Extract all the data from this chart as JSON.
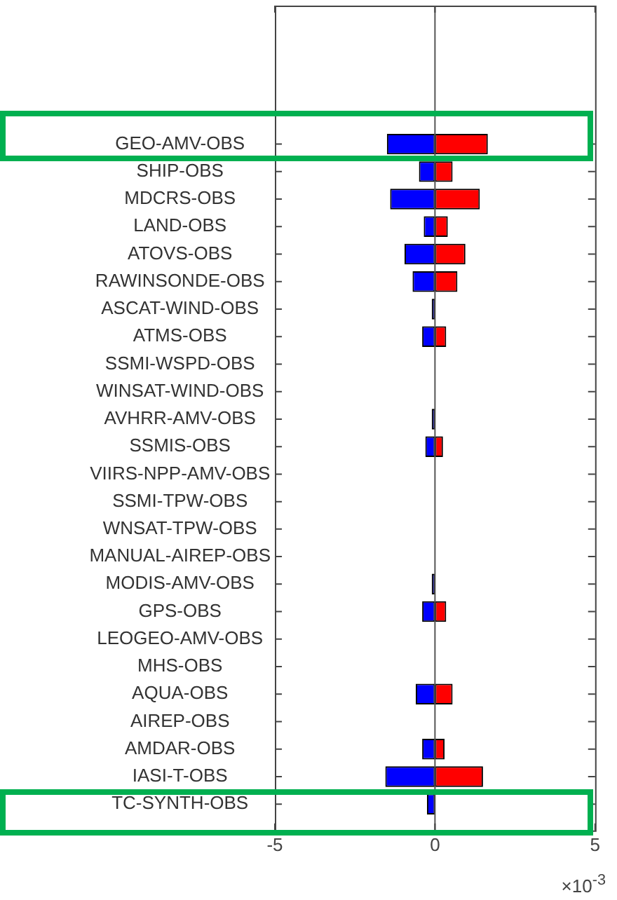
{
  "chart_data": {
    "type": "bar",
    "orientation": "horizontal",
    "stacked": true,
    "categories": [
      "GEO-AMV-OBS",
      "SHIP-OBS",
      "MDCRS-OBS",
      "LAND-OBS",
      "ATOVS-OBS",
      "RAWINSONDE-OBS",
      "ASCAT-WIND-OBS",
      "ATMS-OBS",
      "SSMI-WSPD-OBS",
      "WINSAT-WIND-OBS",
      "AVHRR-AMV-OBS",
      "SSMIS-OBS",
      "VIIRS-NPP-AMV-OBS",
      "SSMI-TPW-OBS",
      "WNSAT-TPW-OBS",
      "MANUAL-AIREP-OBS",
      "MODIS-AMV-OBS",
      "GPS-OBS",
      "LEOGEO-AMV-OBS",
      "MHS-OBS",
      "AQUA-OBS",
      "AIREP-OBS",
      "AMDAR-OBS",
      "IASI-T-OBS",
      "TC-SYNTH-OBS"
    ],
    "series": [
      {
        "color": "#0000ff",
        "values": [
          -1.5,
          -0.5,
          -1.4,
          -0.35,
          -0.95,
          -0.7,
          -0.1,
          -0.4,
          0,
          0,
          -0.1,
          -0.3,
          0,
          0,
          0,
          0,
          -0.1,
          -0.4,
          0,
          0,
          -0.6,
          0,
          -0.4,
          -1.55,
          -0.25
        ]
      },
      {
        "color": "#ff0000",
        "values": [
          1.65,
          0.55,
          1.4,
          0.4,
          0.95,
          0.7,
          0,
          0.35,
          0,
          0,
          0,
          0.25,
          0,
          0,
          0,
          0,
          0,
          0.35,
          0,
          0,
          0.55,
          0,
          0.3,
          1.5,
          0
        ]
      }
    ],
    "ref_lines": [
      {
        "axis": "x",
        "value": 0,
        "color": "#555555"
      }
    ],
    "xlim": [
      -5,
      5
    ],
    "xticks": [
      -5,
      0,
      5
    ],
    "grid": false,
    "legend": false,
    "annotations": [
      "×10$^{-3}$"
    ]
  }
}
